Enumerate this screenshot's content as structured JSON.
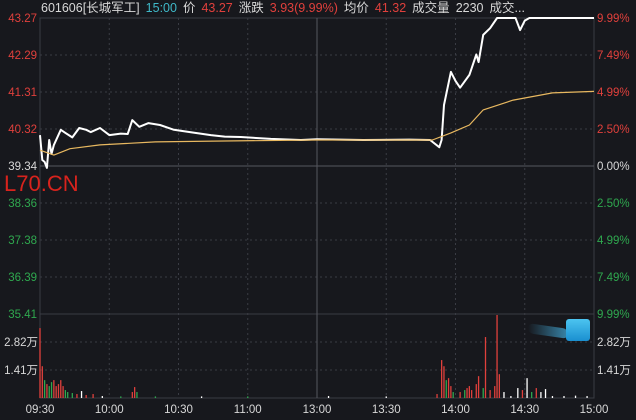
{
  "header": {
    "code_name": "601606[长城军工]",
    "time": "15:00",
    "price_label": "价",
    "price": "43.27",
    "change_label": "涨跌",
    "change": "3.93(9.99%)",
    "avg_label": "均价",
    "avg": "41.32",
    "volume_label": "成交量",
    "volume": "2230",
    "amount_label": "成交..."
  },
  "watermark": "L70.CN",
  "colors": {
    "up": "#e0403c",
    "down": "#2fa84f",
    "price_line": "#ffffff",
    "avg_line": "#e8b860",
    "grid": "#3a3c44",
    "flat": "#d8d8d8"
  },
  "chart_data": {
    "type": "line",
    "prev_close": 39.34,
    "ylim": [
      35.41,
      43.27
    ],
    "y_ticks_left": [
      "43.27",
      "42.29",
      "41.31",
      "40.32",
      "39.34",
      "38.36",
      "37.38",
      "36.39",
      "35.41"
    ],
    "y_ticks_right": [
      "9.99%",
      "7.49%",
      "4.99%",
      "2.50%",
      "0.00%",
      "2.50%",
      "4.99%",
      "7.49%",
      "9.99%"
    ],
    "x_ticks": [
      "09:30",
      "10:00",
      "10:30",
      "11:00",
      "13:00",
      "13:30",
      "14:00",
      "14:30",
      "15:00"
    ],
    "series": [
      {
        "key": "price",
        "points": [
          [
            "09:30",
            40.16
          ],
          [
            "09:31",
            39.5
          ],
          [
            "09:32",
            39.45
          ],
          [
            "09:33",
            39.29
          ],
          [
            "09:34",
            40.03
          ],
          [
            "09:35",
            39.66
          ],
          [
            "09:36",
            39.9
          ],
          [
            "09:39",
            40.3
          ],
          [
            "09:41",
            40.22
          ],
          [
            "09:44",
            40.1
          ],
          [
            "09:47",
            40.35
          ],
          [
            "09:50",
            40.3
          ],
          [
            "09:52",
            40.24
          ],
          [
            "09:56",
            40.35
          ],
          [
            "10:00",
            40.16
          ],
          [
            "10:05",
            40.2
          ],
          [
            "10:08",
            40.19
          ],
          [
            "10:10",
            40.56
          ],
          [
            "10:13",
            40.38
          ],
          [
            "10:17",
            40.48
          ],
          [
            "10:22",
            40.43
          ],
          [
            "10:28",
            40.3
          ],
          [
            "10:35",
            40.24
          ],
          [
            "10:44",
            40.16
          ],
          [
            "10:50",
            40.12
          ],
          [
            "10:57",
            40.11
          ],
          [
            "11:10",
            40.06
          ],
          [
            "11:23",
            40.03
          ],
          [
            "13:00",
            40.05
          ],
          [
            "13:20",
            40.03
          ],
          [
            "13:40",
            40.04
          ],
          [
            "13:49",
            40.03
          ],
          [
            "13:53",
            39.84
          ],
          [
            "13:54",
            40.03
          ],
          [
            "13:55",
            40.96
          ],
          [
            "13:58",
            41.84
          ],
          [
            "14:00",
            41.6
          ],
          [
            "14:02",
            41.42
          ],
          [
            "14:06",
            41.76
          ],
          [
            "14:09",
            42.3
          ],
          [
            "14:10",
            42.1
          ],
          [
            "14:12",
            42.82
          ],
          [
            "14:15",
            43.0
          ],
          [
            "14:18",
            43.27
          ],
          [
            "14:26",
            43.27
          ],
          [
            "14:28",
            42.95
          ],
          [
            "14:30",
            43.2
          ],
          [
            "14:32",
            43.27
          ],
          [
            "15:00",
            43.27
          ]
        ]
      },
      {
        "key": "average",
        "points": [
          [
            "09:30",
            39.76
          ],
          [
            "09:36",
            39.63
          ],
          [
            "09:43",
            39.8
          ],
          [
            "09:56",
            39.9
          ],
          [
            "10:20",
            39.98
          ],
          [
            "10:45",
            40.0
          ],
          [
            "11:30",
            40.03
          ],
          [
            "13:50",
            40.03
          ],
          [
            "13:58",
            40.22
          ],
          [
            "14:06",
            40.43
          ],
          [
            "14:12",
            40.83
          ],
          [
            "14:25",
            41.09
          ],
          [
            "14:42",
            41.28
          ],
          [
            "15:00",
            41.32
          ]
        ]
      }
    ],
    "volume": {
      "unit": "万",
      "y_ticks": [
        "2.82万",
        "1.41万"
      ],
      "ylim": [
        0,
        4.23
      ],
      "bars": [
        [
          "09:30",
          3.52,
          "up"
        ],
        [
          "09:31",
          1.6,
          "up"
        ],
        [
          "09:32",
          0.9,
          "down"
        ],
        [
          "09:33",
          0.7,
          "up"
        ],
        [
          "09:34",
          0.6,
          "down"
        ],
        [
          "09:35",
          0.8,
          "down"
        ],
        [
          "09:36",
          0.9,
          "up"
        ],
        [
          "09:37",
          0.6,
          "up"
        ],
        [
          "09:38",
          0.7,
          "up"
        ],
        [
          "09:39",
          0.9,
          "up"
        ],
        [
          "09:40",
          0.6,
          "up"
        ],
        [
          "09:41",
          0.4,
          "down"
        ],
        [
          "09:42",
          0.3,
          "down"
        ],
        [
          "09:44",
          0.25,
          "down"
        ],
        [
          "09:46",
          0.2,
          "up"
        ],
        [
          "09:48",
          0.35,
          "flat"
        ],
        [
          "09:50",
          0.15,
          "up"
        ],
        [
          "09:53",
          0.2,
          "up"
        ],
        [
          "09:57",
          0.1,
          "flat"
        ],
        [
          "10:05",
          0.08,
          "down"
        ],
        [
          "10:10",
          0.3,
          "up"
        ],
        [
          "10:11",
          0.55,
          "up"
        ],
        [
          "10:12",
          0.3,
          "down"
        ],
        [
          "10:20",
          0.08,
          "down"
        ],
        [
          "10:40",
          0.08,
          "flat"
        ],
        [
          "11:00",
          0.08,
          "down"
        ],
        [
          "13:05",
          0.1,
          "flat"
        ],
        [
          "13:30",
          0.08,
          "flat"
        ],
        [
          "13:52",
          0.2,
          "up"
        ],
        [
          "13:54",
          1.91,
          "up"
        ],
        [
          "13:55",
          1.6,
          "up"
        ],
        [
          "13:56",
          0.9,
          "down"
        ],
        [
          "13:57",
          1.0,
          "up"
        ],
        [
          "13:58",
          0.6,
          "up"
        ],
        [
          "13:59",
          0.3,
          "down"
        ],
        [
          "14:02",
          0.3,
          "up"
        ],
        [
          "14:04",
          0.4,
          "down"
        ],
        [
          "14:05",
          0.5,
          "up"
        ],
        [
          "14:06",
          0.6,
          "up"
        ],
        [
          "14:07",
          0.4,
          "up"
        ],
        [
          "14:09",
          0.7,
          "up"
        ],
        [
          "14:10",
          1.1,
          "up"
        ],
        [
          "14:12",
          0.5,
          "down"
        ],
        [
          "14:13",
          3.07,
          "up"
        ],
        [
          "14:15",
          0.4,
          "up"
        ],
        [
          "14:17",
          0.6,
          "up"
        ],
        [
          "14:18",
          4.18,
          "up"
        ],
        [
          "14:19",
          1.2,
          "up"
        ],
        [
          "14:21",
          0.3,
          "flat"
        ],
        [
          "14:24",
          0.1,
          "flat"
        ],
        [
          "14:27",
          0.5,
          "flat"
        ],
        [
          "14:29",
          0.4,
          "up"
        ],
        [
          "14:31",
          1.0,
          "flat"
        ],
        [
          "14:33",
          0.3,
          "down"
        ],
        [
          "14:35",
          0.5,
          "up"
        ],
        [
          "14:37",
          0.3,
          "flat"
        ],
        [
          "14:39",
          0.45,
          "flat"
        ],
        [
          "14:42",
          0.1,
          "flat"
        ],
        [
          "14:47",
          0.1,
          "flat"
        ],
        [
          "14:52",
          0.12,
          "flat"
        ],
        [
          "14:57",
          0.1,
          "flat"
        ]
      ]
    }
  }
}
